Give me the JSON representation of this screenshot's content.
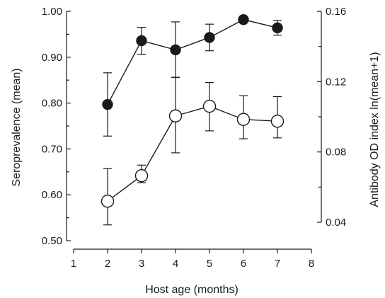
{
  "chart_data": {
    "type": "line",
    "xlabel": "Host age (months)",
    "ylabel": "Seroprevalence (mean)",
    "y2label": "Antibody OD index ln(mean+1)",
    "xlim": [
      1,
      8
    ],
    "ylim": [
      0.5,
      1.0
    ],
    "y2lim": [
      0.04,
      0.16
    ],
    "x_ticks": [
      1,
      2,
      3,
      4,
      5,
      6,
      7,
      8
    ],
    "y_ticks": [
      "0.50",
      "0.60",
      "0.70",
      "0.80",
      "0.90",
      "1.00"
    ],
    "y2_ticks": [
      "0.04",
      "0.08",
      "0.12",
      "0.16"
    ],
    "grid": false,
    "series": [
      {
        "axis": "left",
        "marker": "filled-circle",
        "color": "#1a1a1a",
        "x": [
          2,
          3,
          4,
          5,
          6,
          7
        ],
        "y": [
          0.797,
          0.936,
          0.916,
          0.943,
          0.982,
          0.964
        ],
        "err_low": [
          0.728,
          0.906,
          0.856,
          0.914,
          0.976,
          0.948
        ],
        "err_high": [
          0.866,
          0.965,
          0.977,
          0.972,
          0.987,
          0.98
        ]
      },
      {
        "axis": "right",
        "marker": "open-circle",
        "color": "#1a1a1a",
        "x": [
          2,
          3,
          4,
          5,
          6,
          7
        ],
        "y": [
          0.052,
          0.0665,
          0.1005,
          0.106,
          0.0985,
          0.0975
        ],
        "err_low": [
          0.0385,
          0.0625,
          0.0795,
          0.092,
          0.0875,
          0.088
        ],
        "err_high": [
          0.0705,
          0.0725,
          0.1225,
          0.1195,
          0.112,
          0.1115
        ]
      }
    ]
  }
}
